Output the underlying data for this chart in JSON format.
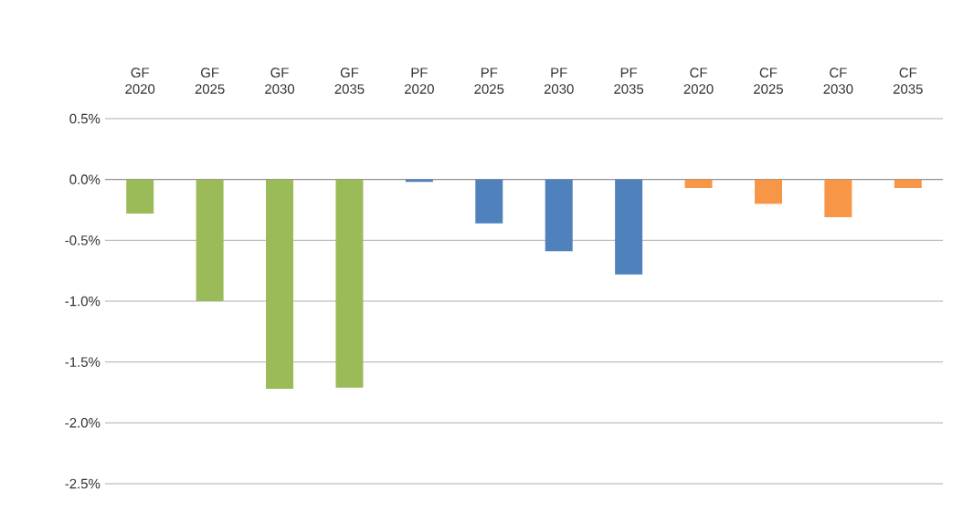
{
  "chart_data": {
    "type": "bar",
    "categories": [
      "GF 2020",
      "GF 2025",
      "GF 2030",
      "GF 2035",
      "PF 2020",
      "PF 2025",
      "PF 2030",
      "PF 2035",
      "CF 2020",
      "CF 2025",
      "CF 2030",
      "CF 2035"
    ],
    "values": [
      -0.28,
      -1.0,
      -1.72,
      -1.71,
      -0.02,
      -0.36,
      -0.59,
      -0.78,
      -0.07,
      -0.2,
      -0.31,
      -0.07
    ],
    "colors": [
      "#9bbb59",
      "#9bbb59",
      "#9bbb59",
      "#9bbb59",
      "#4f81bd",
      "#4f81bd",
      "#4f81bd",
      "#4f81bd",
      "#f79646",
      "#f79646",
      "#f79646",
      "#f79646"
    ],
    "ylim": [
      -2.5,
      0.5
    ],
    "yticks": [
      {
        "value": 0.5,
        "label": "0.5%"
      },
      {
        "value": 0.0,
        "label": "0.0%"
      },
      {
        "value": -0.5,
        "label": "-0.5%"
      },
      {
        "value": -1.0,
        "label": "-1.0%"
      },
      {
        "value": -1.5,
        "label": "-1.5%"
      },
      {
        "value": -2.0,
        "label": "-2.0%"
      },
      {
        "value": -2.5,
        "label": "-2.5%"
      }
    ],
    "grid": "y"
  }
}
